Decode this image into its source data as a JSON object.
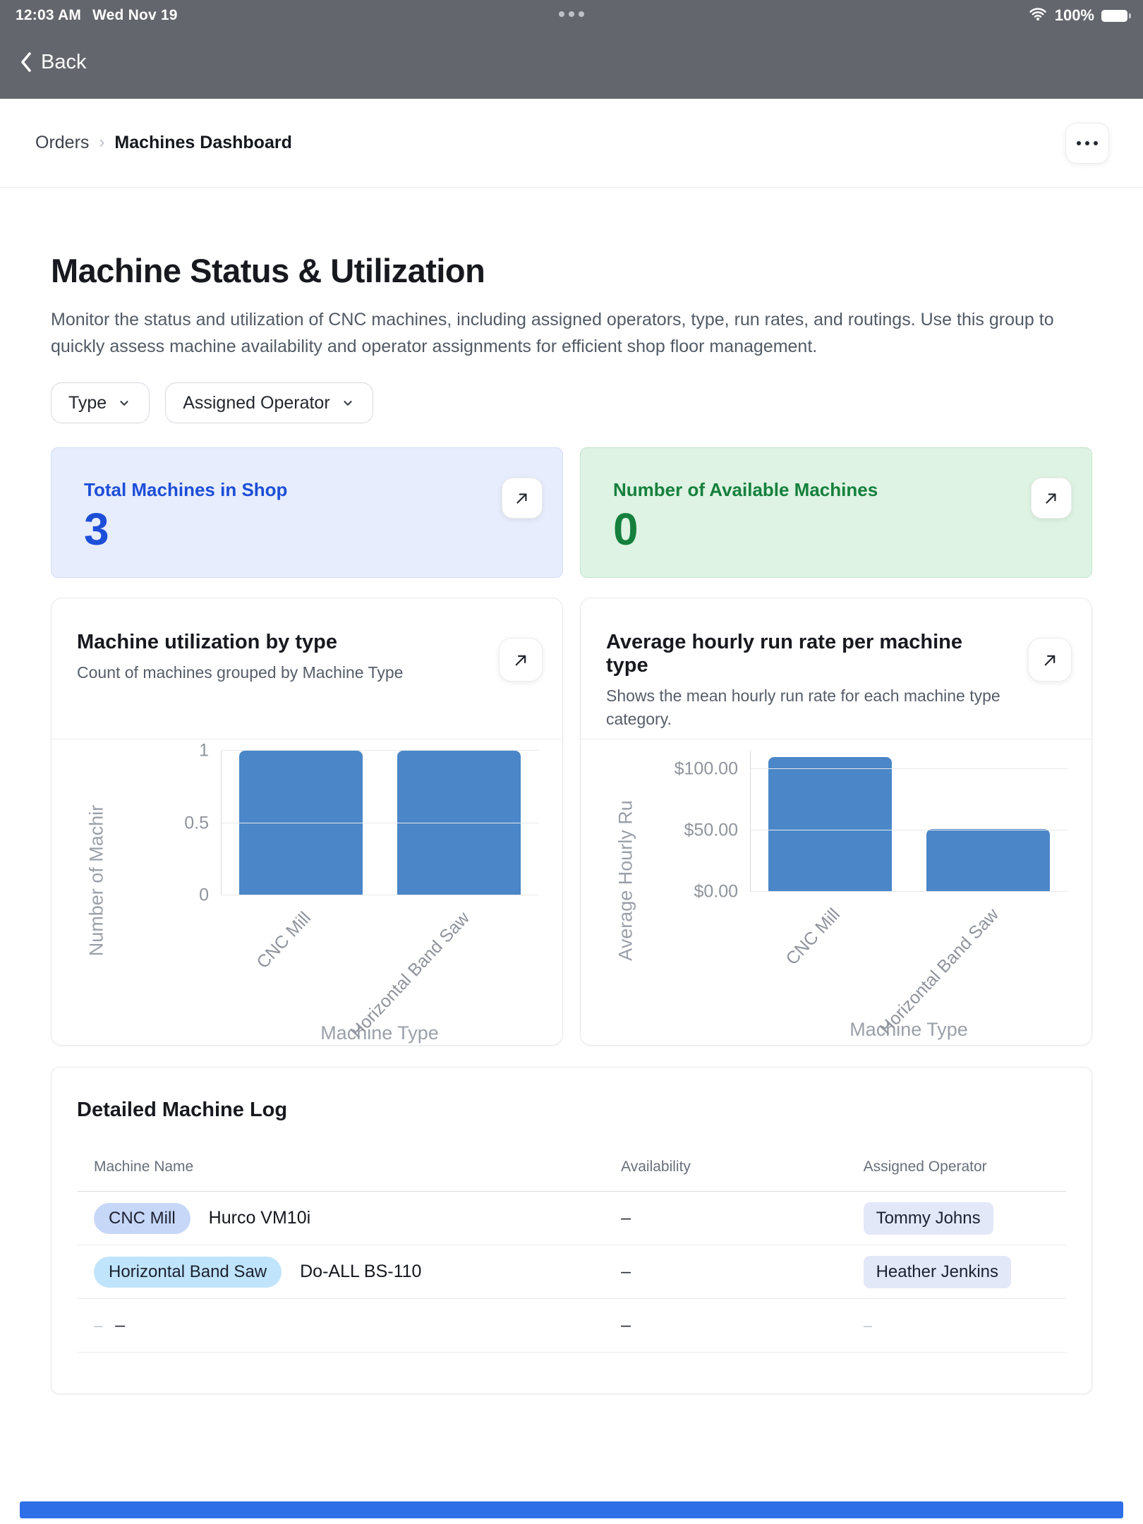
{
  "status_bar": {
    "time": "12:03 AM",
    "date": "Wed Nov 19",
    "battery_percent": "100%"
  },
  "nav_bar": {
    "back_label": "Back"
  },
  "breadcrumb": {
    "parent": "Orders",
    "current": "Machines Dashboard"
  },
  "page": {
    "title": "Machine Status & Utilization",
    "description": "Monitor the status and utilization of CNC machines, including assigned operators, type, run rates, and routings. Use this group to quickly assess machine availability and operator assignments for efficient shop floor management."
  },
  "filters": {
    "type_label": "Type",
    "operator_label": "Assigned Operator"
  },
  "stat_cards": [
    {
      "title": "Total Machines in Shop",
      "value": "3"
    },
    {
      "title": "Number of Available Machines",
      "value": "0"
    }
  ],
  "chart_data": [
    {
      "type": "bar",
      "title": "Machine utilization by type",
      "subtitle": "Count of machines grouped by Machine Type",
      "categories": [
        "CNC Mill",
        "Horizontal Band Saw"
      ],
      "values": [
        1,
        1
      ],
      "xlabel": "Machine Type",
      "ylabel": "Number of Machir",
      "ylim": [
        0,
        1
      ],
      "ticks": [
        {
          "v": 0,
          "label": "0"
        },
        {
          "v": 0.5,
          "label": "0.5"
        },
        {
          "v": 1,
          "label": "1"
        }
      ],
      "grid": true,
      "legend": "none"
    },
    {
      "type": "bar",
      "title": "Average hourly run rate per machine type",
      "subtitle": "Shows the mean hourly run rate for each machine type category.",
      "categories": [
        "CNC Mill",
        "Horizontal Band Saw"
      ],
      "values": [
        110,
        51
      ],
      "xlabel": "Machine Type",
      "ylabel": "Average Hourly Ru",
      "ylim": [
        0,
        115
      ],
      "ticks": [
        {
          "v": 0,
          "label": "$0.00"
        },
        {
          "v": 50,
          "label": "$50.00"
        },
        {
          "v": 100,
          "label": "$100.00"
        }
      ],
      "grid": true,
      "legend": "none"
    }
  ],
  "table": {
    "title": "Detailed Machine Log",
    "columns": [
      "Machine Name",
      "Availability",
      "Assigned Operator"
    ],
    "rows": [
      {
        "type_badge": "CNC Mill",
        "name": "Hurco VM10i",
        "availability": "–",
        "operator": "Tommy Johns"
      },
      {
        "type_badge": "Horizontal Band Saw",
        "name": "Do-ALL BS-110",
        "availability": "–",
        "operator": "Heather Jenkins"
      },
      {
        "lead_dash": "–",
        "name": "–",
        "availability": "–",
        "operator": "–"
      }
    ]
  },
  "colors": {
    "nav_gray": "#63666d",
    "accent_blue": "#1d4ed8",
    "stat_blue_bg": "#e7edfc",
    "accent_green": "#15803d",
    "stat_green_bg": "#def3e3",
    "bar_blue": "#4a86c8",
    "badge_cnc_mill": "#c7d7f8",
    "badge_band_saw": "#c0e4fb",
    "badge_operator": "#e2e8f8",
    "bottom_bar_blue": "#2e6fe8"
  },
  "icons": {
    "back": "chevron-left",
    "breadcrumb_sep": "chevron-right",
    "more": "ellipsis",
    "dropdown": "chevron-down",
    "expand": "arrow-up-right",
    "wifi": "wifi",
    "battery": "battery-full",
    "status_menu": "ellipsis"
  }
}
